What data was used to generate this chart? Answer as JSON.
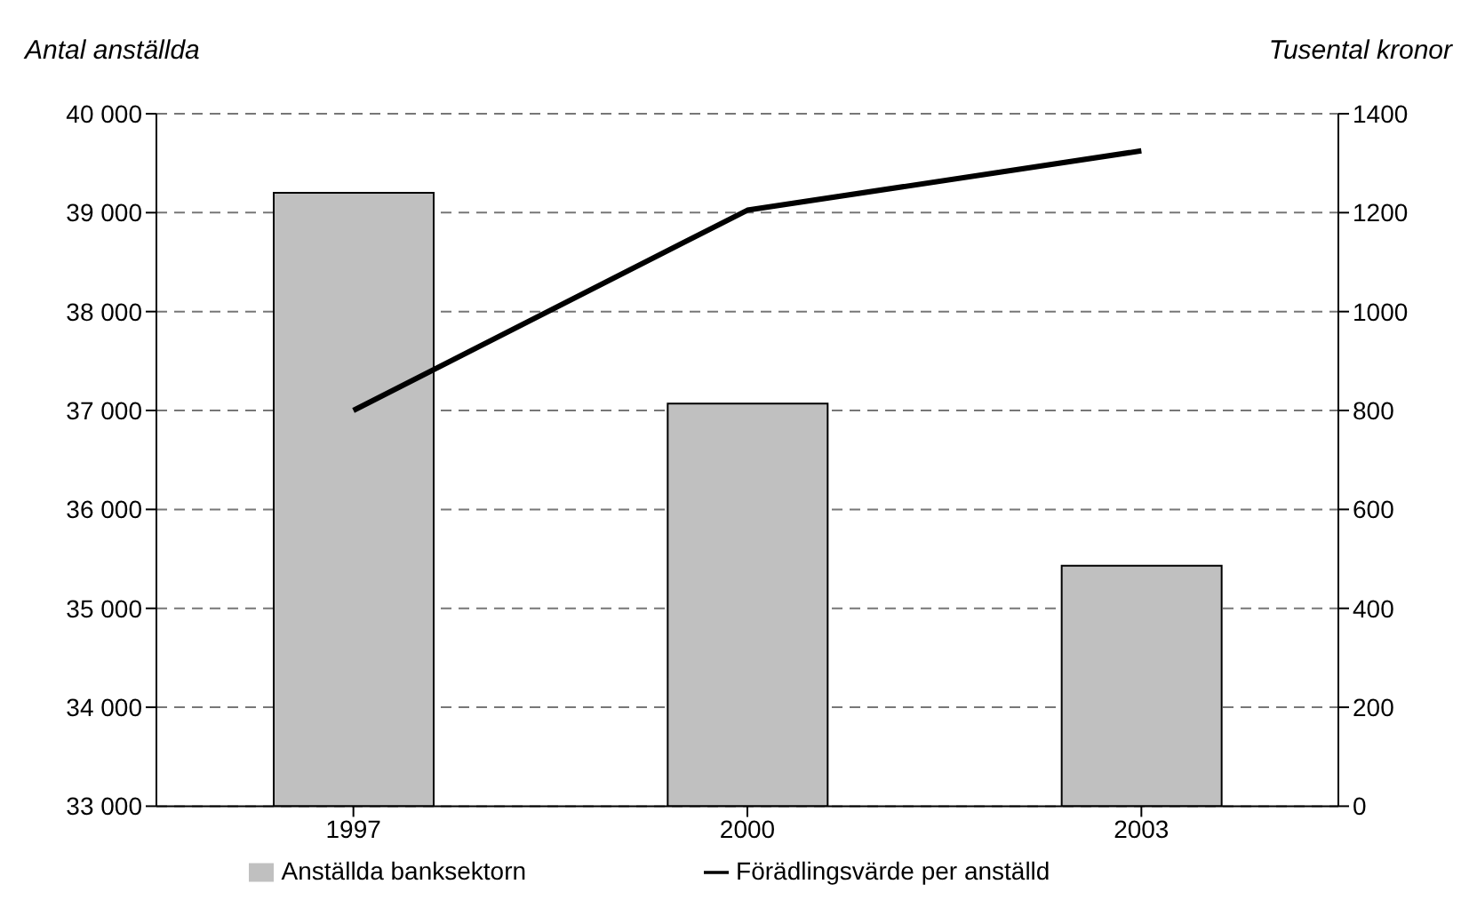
{
  "chart_data": {
    "type": "bar",
    "ylabel": "Antal anställda",
    "y2label": "Tusental kronor",
    "categories": [
      "1997",
      "2000",
      "2003"
    ],
    "series": [
      {
        "name": "Anställda banksektorn",
        "color": "#c0c0c0",
        "values": [
          39200,
          37070,
          35430
        ]
      },
      {
        "name": "Förädlingsvärde per anställd",
        "type": "line",
        "axis": "y2",
        "color": "#000000",
        "values": [
          800,
          1205,
          1325
        ]
      }
    ],
    "ylim": [
      33000,
      40000
    ],
    "yticks": [
      {
        "value": 33000,
        "label": "33 000"
      },
      {
        "value": 34000,
        "label": "34 000"
      },
      {
        "value": 35000,
        "label": "35 000"
      },
      {
        "value": 36000,
        "label": "36 000"
      },
      {
        "value": 37000,
        "label": "37 000"
      },
      {
        "value": 38000,
        "label": "38 000"
      },
      {
        "value": 39000,
        "label": "39 000"
      },
      {
        "value": 40000,
        "label": "40 000"
      }
    ],
    "y2lim": [
      0,
      1400
    ],
    "y2ticks": [
      0,
      200,
      400,
      600,
      800,
      1000,
      1200,
      1400
    ],
    "grid": "y",
    "legend": "bottom",
    "marker": "none",
    "line_style": "solid"
  }
}
